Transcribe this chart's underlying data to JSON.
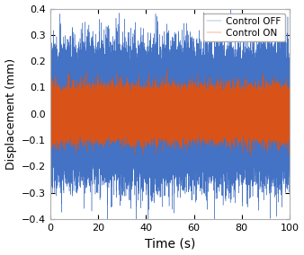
{
  "title": "",
  "xlabel": "Time (s)",
  "ylabel": "Displacement (mm)",
  "xlim": [
    0,
    100
  ],
  "ylim": [
    -0.4,
    0.4
  ],
  "yticks": [
    -0.4,
    -0.3,
    -0.2,
    -0.1,
    0.0,
    0.1,
    0.2,
    0.3,
    0.4
  ],
  "xticks": [
    0,
    20,
    40,
    60,
    80,
    100
  ],
  "color_off": "#4472C4",
  "color_on": "#D95319",
  "legend_labels": [
    "Control OFF",
    "Control ON"
  ],
  "noise_off_std": 0.1,
  "noise_on_std": 0.04,
  "n_points": 80000,
  "t_max": 100,
  "lw_off": 0.3,
  "lw_on": 0.3,
  "figsize": [
    3.38,
    2.84
  ],
  "dpi": 100,
  "bg_color": "#ffffff",
  "spine_color": "#b0b0b0",
  "legend_fontsize": 7.5,
  "xlabel_fontsize": 10,
  "ylabel_fontsize": 9,
  "tick_fontsize": 8
}
